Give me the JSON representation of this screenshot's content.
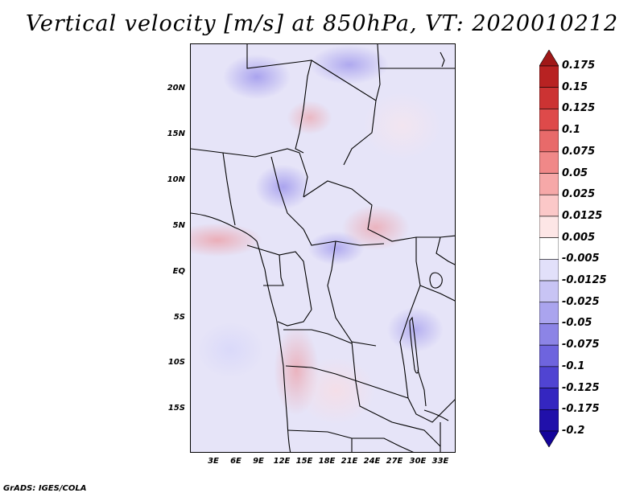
{
  "title": "Vertical velocity [m/s] at 850hPa, VT: 2020010212",
  "footer": "GrADS: IGES/COLA",
  "map": {
    "lat_labels": [
      "20N",
      "15N",
      "10N",
      "5N",
      "EQ",
      "5S",
      "10S",
      "15S"
    ],
    "lon_labels": [
      "3E",
      "6E",
      "9E",
      "12E",
      "15E",
      "18E",
      "21E",
      "24E",
      "27E",
      "30E",
      "33E"
    ]
  },
  "colorbar": {
    "labels": [
      "0.175",
      "0.15",
      "0.125",
      "0.1",
      "0.075",
      "0.05",
      "0.025",
      "0.0125",
      "0.005",
      "-0.005",
      "-0.0125",
      "-0.025",
      "-0.05",
      "-0.075",
      "-0.1",
      "-0.125",
      "-0.175",
      "-0.2"
    ],
    "colors": [
      "#a01818",
      "#b82222",
      "#cc3333",
      "#de4a4a",
      "#e86a6a",
      "#f08888",
      "#f6a8a8",
      "#fbc8c8",
      "#fde6e6",
      "#ffffff",
      "#e2e0fa",
      "#c8c4f4",
      "#aaa4ee",
      "#8c84e6",
      "#6e64de",
      "#5044d2",
      "#3426c0",
      "#2010aa",
      "#14049a"
    ]
  }
}
